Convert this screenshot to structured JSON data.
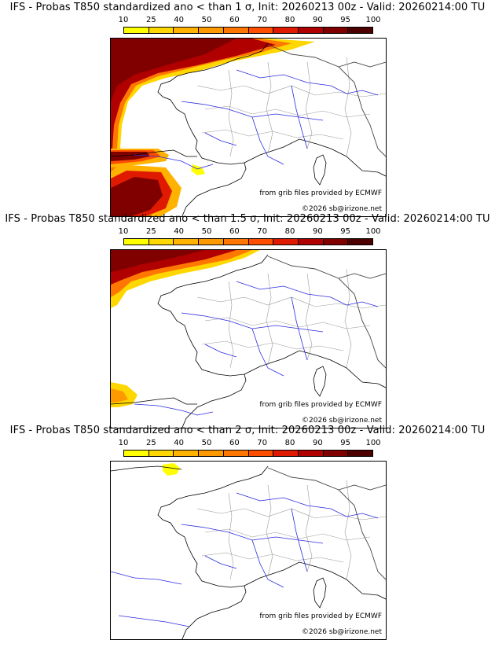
{
  "colorbar": {
    "labels": [
      "10",
      "25",
      "40",
      "50",
      "60",
      "70",
      "80",
      "90",
      "95",
      "100"
    ],
    "colors": [
      "#ffff00",
      "#ffd700",
      "#ffb300",
      "#ff9900",
      "#ff7700",
      "#ff4e00",
      "#e01a00",
      "#b00000",
      "#800000",
      "#4d0000"
    ]
  },
  "panels": [
    {
      "title": "IFS - Probas T850  standardized ano < than 1 σ, Init: 20260213 00z - Valid: 20260214:00 TU",
      "credit_source": "from grib files provided by ECMWF",
      "credit_copyright": "©2026 sb@irizone.net"
    },
    {
      "title": "IFS - Probas T850  standardized ano < than 1.5 σ, Init: 20260213 00z - Valid: 20260214:00 TU",
      "credit_source": "from grib files provided by ECMWF",
      "credit_copyright": "©2026 sb@irizone.net"
    },
    {
      "title": "IFS - Probas T850  standardized ano < than 2 σ, Init: 20260213 00z - Valid: 20260214:00 TU",
      "credit_source": "from grib files provided by ECMWF",
      "credit_copyright": "©2026 sb@irizone.net"
    }
  ]
}
